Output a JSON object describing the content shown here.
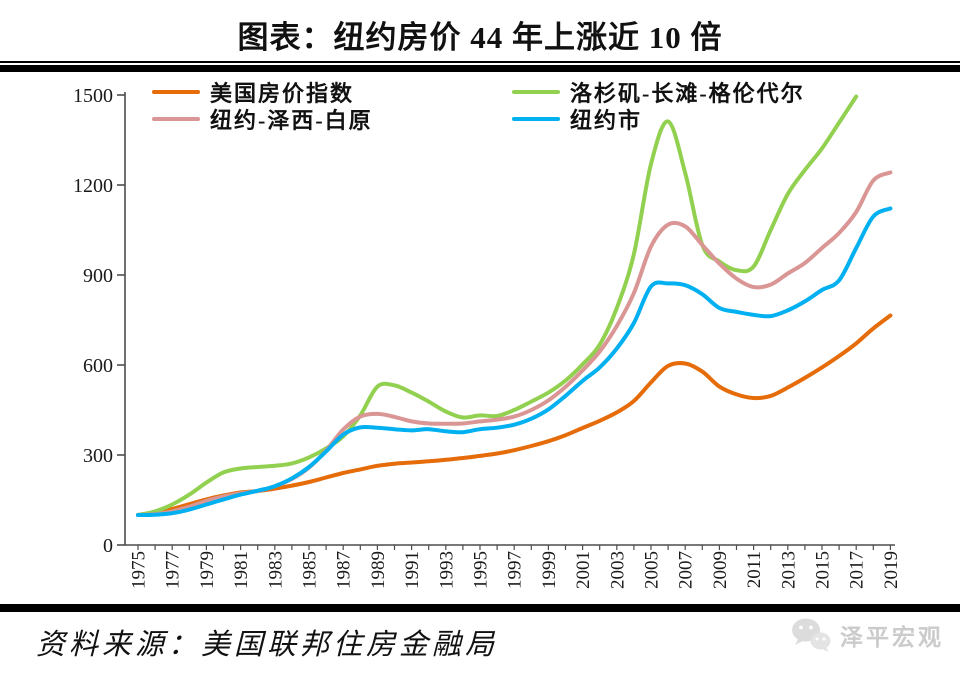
{
  "page": {
    "title": "图表：纽约房价 44 年上涨近 10 倍",
    "source": "资料来源：美国联邦住房金融局",
    "watermark": "泽平宏观"
  },
  "colors": {
    "rule_black": "#000000",
    "axis": "#4d4d4d",
    "tick_text": "#1a1a1a",
    "watermark_gray": "#cbcbcb",
    "background": "#ffffff"
  },
  "chart_data": {
    "type": "line",
    "title": "图表：纽约房价 44 年上涨近 10 倍",
    "xlabel": "",
    "ylabel": "",
    "ylim": [
      0,
      1500
    ],
    "y_ticks": [
      0,
      300,
      600,
      900,
      1200,
      1500
    ],
    "grid": false,
    "legend_position": "top",
    "x": [
      1975,
      1976,
      1977,
      1978,
      1979,
      1980,
      1981,
      1982,
      1983,
      1984,
      1985,
      1986,
      1987,
      1988,
      1989,
      1990,
      1991,
      1992,
      1993,
      1994,
      1995,
      1996,
      1997,
      1998,
      1999,
      2000,
      2001,
      2002,
      2003,
      2004,
      2005,
      2006,
      2007,
      2008,
      2009,
      2010,
      2011,
      2012,
      2013,
      2014,
      2015,
      2016,
      2017,
      2018,
      2019
    ],
    "x_tick_labels": [
      "1975",
      "1977",
      "1979",
      "1981",
      "1983",
      "1985",
      "1987",
      "1989",
      "1991",
      "1993",
      "1995",
      "1997",
      "1999",
      "2001",
      "2003",
      "2005",
      "2007",
      "2009",
      "2011",
      "2013",
      "2015",
      "2017",
      "2019"
    ],
    "series": [
      {
        "name": "美国房价指数",
        "color": "#E56C09",
        "values": [
          100,
          108,
          120,
          136,
          152,
          165,
          175,
          180,
          188,
          198,
          210,
          225,
          240,
          252,
          264,
          271,
          275,
          279,
          284,
          290,
          297,
          305,
          316,
          330,
          346,
          366,
          390,
          414,
          442,
          480,
          542,
          597,
          605,
          578,
          528,
          502,
          490,
          497,
          525,
          557,
          592,
          630,
          672,
          722,
          765
        ]
      },
      {
        "name": "洛杉矶-长滩-格伦代尔",
        "color": "#92D050",
        "values": [
          100,
          112,
          135,
          168,
          208,
          242,
          255,
          260,
          264,
          272,
          292,
          322,
          362,
          432,
          528,
          532,
          508,
          478,
          445,
          425,
          432,
          430,
          450,
          478,
          508,
          548,
          602,
          668,
          790,
          970,
          1270,
          1412,
          1240,
          1000,
          945,
          916,
          928,
          1050,
          1170,
          1250,
          1322,
          1408,
          1495,
          null,
          null
        ]
      },
      {
        "name": "纽约-泽西-白原",
        "color": "#D99694",
        "values": [
          100,
          103,
          112,
          128,
          147,
          162,
          172,
          180,
          196,
          220,
          258,
          315,
          385,
          428,
          437,
          427,
          412,
          405,
          404,
          405,
          412,
          418,
          428,
          450,
          482,
          527,
          582,
          645,
          730,
          840,
          995,
          1068,
          1062,
          1000,
          938,
          888,
          860,
          868,
          905,
          940,
          990,
          1040,
          1110,
          1215,
          1242
        ]
      },
      {
        "name": "纽约市",
        "color": "#00B0F0",
        "values": [
          100,
          101,
          106,
          118,
          135,
          152,
          168,
          181,
          196,
          222,
          260,
          312,
          368,
          392,
          391,
          386,
          382,
          386,
          379,
          376,
          386,
          391,
          401,
          421,
          452,
          497,
          547,
          592,
          655,
          740,
          862,
          872,
          866,
          836,
          790,
          777,
          767,
          763,
          782,
          812,
          850,
          882,
          990,
          1095,
          1122
        ]
      }
    ]
  }
}
